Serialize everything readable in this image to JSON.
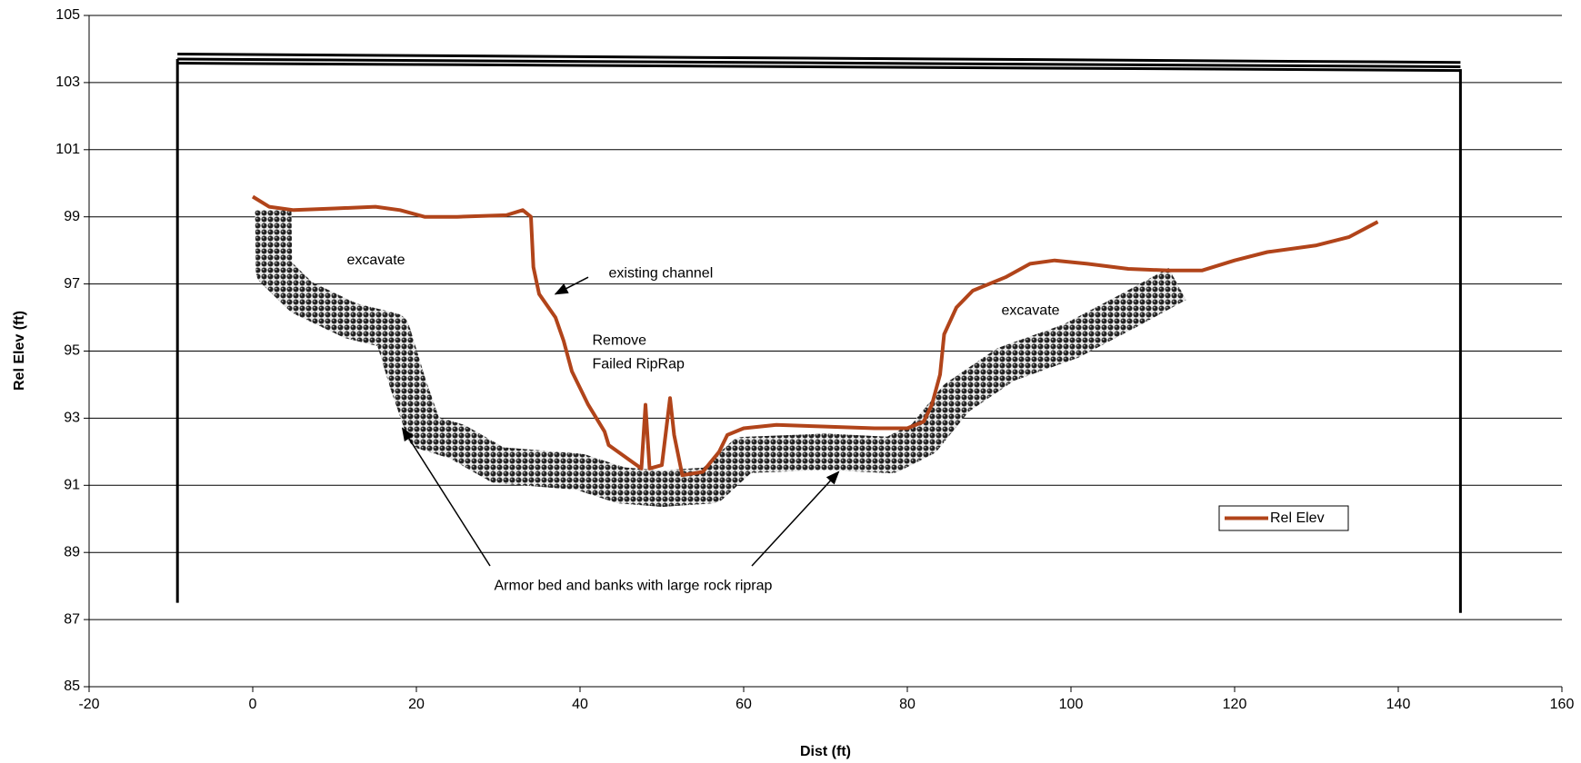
{
  "chart_data": {
    "type": "line",
    "xlabel": "Dist (ft)",
    "ylabel": "Rel Elev (ft)",
    "x": [
      0,
      2,
      5,
      10,
      15,
      18,
      21,
      25,
      31,
      33,
      34,
      34.3,
      35,
      37,
      38,
      39,
      41,
      43,
      43.5,
      47.5,
      48,
      48.5,
      50,
      51,
      51.5,
      52.5,
      55,
      56,
      57,
      58,
      60,
      64,
      70,
      76,
      80,
      82,
      83,
      84,
      84.5,
      86,
      88,
      92,
      95,
      98,
      102,
      107,
      112,
      116,
      120,
      124,
      130,
      134,
      137.5
    ],
    "series": [
      {
        "name": "Rel Elev",
        "color": "#b1441a",
        "values": [
          99.6,
          99.3,
          99.2,
          99.25,
          99.3,
          99.2,
          99.0,
          99.0,
          99.05,
          99.2,
          99.0,
          97.5,
          96.7,
          96.0,
          95.3,
          94.4,
          93.4,
          92.6,
          92.2,
          91.5,
          93.4,
          91.5,
          91.6,
          93.6,
          92.5,
          91.3,
          91.4,
          91.7,
          92.0,
          92.5,
          92.7,
          92.8,
          92.75,
          92.7,
          92.7,
          92.9,
          93.4,
          94.3,
          95.5,
          96.3,
          96.8,
          97.2,
          97.6,
          97.7,
          97.6,
          97.45,
          97.4,
          97.4,
          97.7,
          97.95,
          98.15,
          98.4,
          98.85
        ]
      }
    ],
    "xlim": [
      -20,
      160
    ],
    "xticks": [
      -20,
      0,
      20,
      40,
      60,
      80,
      100,
      120,
      140,
      160
    ],
    "ylim": [
      85,
      105
    ],
    "yticks": [
      85,
      87,
      89,
      91,
      93,
      95,
      97,
      99,
      101,
      103,
      105
    ],
    "grid": true,
    "legend": "right",
    "annotations": [
      "excavate",
      "existing channel",
      "Remove",
      "Failed RipRap",
      "excavate",
      "Armor bed and banks with large rock riprap"
    ]
  }
}
